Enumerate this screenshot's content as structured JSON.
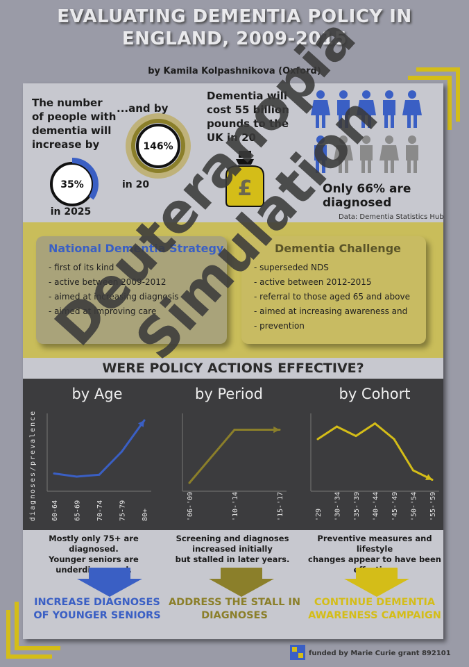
{
  "header": {
    "title_line1": "EVALUATING DEMENTIA POLICY IN",
    "title_line2": "ENGLAND, 2009-2015",
    "author": "by Kamila Kolpashnikova (Oxford)"
  },
  "stats": {
    "increase_text_lines": [
      "The number",
      "of people with",
      "dementia will",
      "increase by"
    ],
    "donut1_value": "35%",
    "donut1_fraction": 0.35,
    "donut1_year": "in 2025",
    "and_by": "...and by",
    "donut2_value": "146%",
    "donut2_year": "in 20",
    "cost_lines": [
      "Dementia will",
      "cost 55 billion",
      "pounds to the",
      "UK in 20"
    ],
    "money_symbol": "£",
    "diagnosed_line1": "Only 66% are",
    "diagnosed_line2": "diagnosed",
    "source": "Data: Dementia Statistics Hub"
  },
  "colors": {
    "blue": "#3a5fc4",
    "olive": "#8b7f2a",
    "yellow": "#d4bd18",
    "gray_person": "#8a8a8a"
  },
  "strategies": {
    "nds": {
      "title": "National Dementia Strategy",
      "items": [
        "first of its kind",
        "active between 2009-2012",
        "aimed at increasing diagnosis",
        "aimed at improving care"
      ]
    },
    "challenge": {
      "title": "Dementia Challenge",
      "items": [
        "superseded NDS",
        "active between 2012-2015",
        "referral to those aged 65 and above",
        "aimed at increasing awareness and",
        "prevention"
      ]
    }
  },
  "question": "WERE POLICY ACTIONS EFFECTIVE?",
  "chart_data": [
    {
      "type": "line",
      "title": "by Age",
      "ylabel": "diagnoses/prevalence",
      "categories": [
        "60-64",
        "65-69",
        "70-74",
        "75-79",
        "80+"
      ],
      "values": [
        0.15,
        0.1,
        0.13,
        0.5,
        1.0
      ],
      "ylim": [
        0,
        1
      ]
    },
    {
      "type": "line",
      "title": "by Period",
      "categories": [
        "'06-'09",
        "'10-'14",
        "'15-'17"
      ],
      "values": [
        0.0,
        0.85,
        0.85
      ],
      "ylim": [
        0,
        1
      ]
    },
    {
      "type": "line",
      "title": "by Cohort",
      "categories": [
        "'29",
        "'30-'34",
        "'35-'39",
        "'40-'44",
        "'45-'49",
        "'50-'54",
        "'55-'59"
      ],
      "values": [
        0.7,
        0.9,
        0.75,
        0.95,
        0.7,
        0.2,
        0.05
      ],
      "ylim": [
        0,
        1
      ]
    }
  ],
  "notes": {
    "age_line1": "Mostly only 75+ are diagnosed.",
    "age_line2": "Younger seniors are",
    "age_line3": "underdiagnosed.",
    "period_line1": "Screening and diagnoses",
    "period_line2": "increased initially",
    "period_line3": "but stalled in later years.",
    "cohort_line1": "Preventive measures and lifestyle",
    "cohort_line2": "changes appear to have been",
    "cohort_line3": "effective."
  },
  "actions": {
    "age_line1": "INCREASE DIAGNOSES",
    "age_line2": "OF YOUNGER SENIORS",
    "period_line1": "ADDRESS THE STALL IN",
    "period_line2": "DIAGNOSES",
    "cohort_line1": "CONTINUE DEMENTIA",
    "cohort_line2": "AWARENESS CAMPAIGN"
  },
  "watermark": {
    "line1": "Deuteranopia",
    "line2": "Simulation"
  },
  "footer": "funded by Marie Curie grant 892101"
}
